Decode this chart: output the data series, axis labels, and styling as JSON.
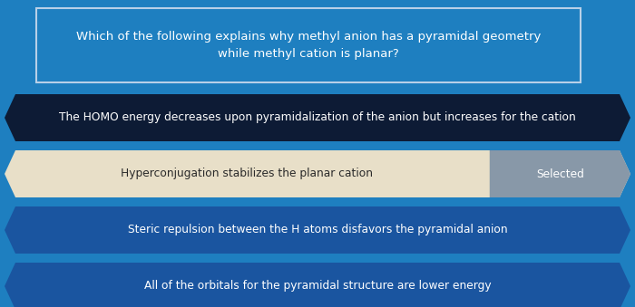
{
  "title": "Which of the following explains why methyl anion has a pyramidal geometry\nwhile methyl cation is planar?",
  "options": [
    {
      "text": "The HOMO energy decreases upon pyramidalization of the anion but increases for the cation",
      "style": "dark_blue",
      "selected": false,
      "selected_label": ""
    },
    {
      "text": "Hyperconjugation stabilizes the planar cation",
      "style": "light_tan",
      "selected": true,
      "selected_label": "Selected"
    },
    {
      "text": "Steric repulsion between the H atoms disfavors the pyramidal anion",
      "style": "medium_blue",
      "selected": false,
      "selected_label": ""
    },
    {
      "text": "All of the orbitals for the pyramidal structure are lower energy",
      "style": "medium_blue",
      "selected": false,
      "selected_label": ""
    }
  ],
  "bg_color": "#1e7fc0",
  "title_box_color": "#1e7fc0",
  "title_box_border": "#b8d0e8",
  "title_text_color": "#ffffff",
  "dark_blue_color": "#0d1b35",
  "light_tan_color": "#e8dfc8",
  "medium_blue_color": "#1a55a0",
  "selected_badge_color": "#8898a8",
  "option_text_color_dark": "#ffffff",
  "option_text_color_light": "#2a2a2a",
  "selected_text_color": "#ffffff",
  "title_fontsize": 9.5,
  "option_fontsize": 8.8
}
